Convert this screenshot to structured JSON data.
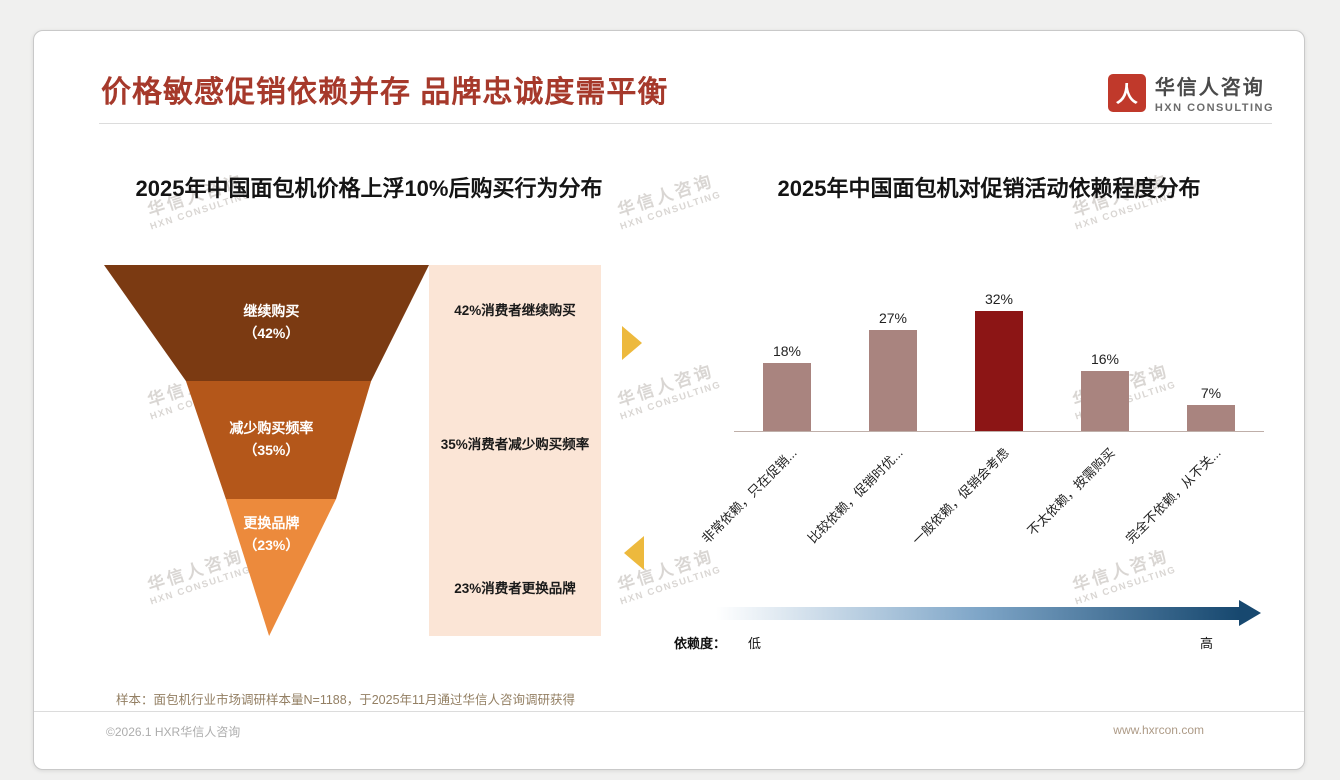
{
  "header": {
    "title": "价格敏感促销依赖并存 品牌忠诚度需平衡",
    "logo": {
      "icon_glyph": "人",
      "name": "华信人咨询",
      "subname": "HXN CONSULTING"
    }
  },
  "watermark": {
    "line1": "华信人咨询",
    "line2": "HXN CONSULTING"
  },
  "chart_data": [
    {
      "type": "funnel",
      "title": "2025年中国面包机价格上浮10%后购买行为分布",
      "segments": [
        {
          "label": "继续购买",
          "pct_label": "（42%）",
          "value": 42,
          "desc": "42%消费者继续购买",
          "color": "#7B3A12"
        },
        {
          "label": "减少购买频率",
          "pct_label": "（35%）",
          "value": 35,
          "desc": "35%消费者减少购买频率",
          "color": "#B4571A"
        },
        {
          "label": "更换品牌",
          "pct_label": "（23%）",
          "value": 23,
          "desc": "23%消费者更换品牌",
          "color": "#EC8A3C"
        }
      ],
      "panel_color": "#FBE5D6",
      "arrow_color": "#EDB93D"
    },
    {
      "type": "bar",
      "title": "2025年中国面包机对促销活动依赖程度分布",
      "categories": [
        "非常依赖，只在促销...",
        "比较依赖，促销时优...",
        "一般依赖，促销会考虑",
        "不太依赖，按需购买",
        "完全不依赖，从不关..."
      ],
      "values": [
        18,
        27,
        32,
        16,
        7
      ],
      "unit": "%",
      "bar_color": "#A9847F",
      "highlight_index": 2,
      "highlight_color": "#8C1515",
      "ylim": [
        0,
        35
      ],
      "grid": false,
      "axis_legend": {
        "label": "依赖度：",
        "low": "低",
        "high": "高",
        "gradient": [
          "#FFFFFF",
          "#7FA6C8",
          "#17486F"
        ]
      }
    }
  ],
  "footnote": "样本：面包机行业市场调研样本量N=1188，于2025年11月通过华信人咨询调研获得",
  "footer": {
    "left": "©2026.1 HXR华信人咨询",
    "right": "www.hxrcon.com"
  }
}
